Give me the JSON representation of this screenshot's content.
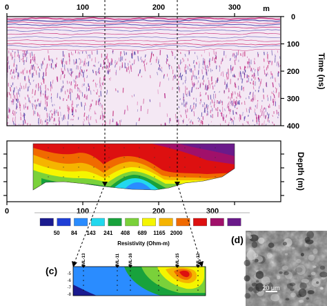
{
  "figure": {
    "gpr_panel": {
      "top_axis_ticks": [
        "0",
        "100",
        "200",
        "300"
      ],
      "top_axis_unit": "m",
      "right_axis_ticks": [
        "0",
        "100",
        "200",
        "300",
        "400"
      ],
      "right_axis_label": "Time (ns)"
    },
    "ert_panel": {
      "right_axis_label": "Depth (m)",
      "bottom_axis_ticks": [
        "0",
        "100",
        "200",
        "300"
      ]
    },
    "colorbar": {
      "values": [
        "50",
        "84",
        "143",
        "241",
        "408",
        "689",
        "1165",
        "2000"
      ],
      "colors": [
        "#1b1b8f",
        "#1f3fd6",
        "#2a8cff",
        "#22d8ee",
        "#18a23c",
        "#7ad13a",
        "#f5f500",
        "#f5b400",
        "#f06a00",
        "#dd1010",
        "#a0106a",
        "#6a1a8a"
      ],
      "label": "Resistivity (Ohm-m)"
    },
    "panel_c": {
      "label": "(c)",
      "borehole_labels": [
        "ML-13",
        "ML-11",
        "ML-16",
        "ML-15",
        "ML-12"
      ],
      "depth_ticks": [
        "-5",
        "-6",
        "-7",
        "-8"
      ]
    },
    "panel_d": {
      "label": "(d)",
      "scale_label": "20 μm"
    }
  }
}
